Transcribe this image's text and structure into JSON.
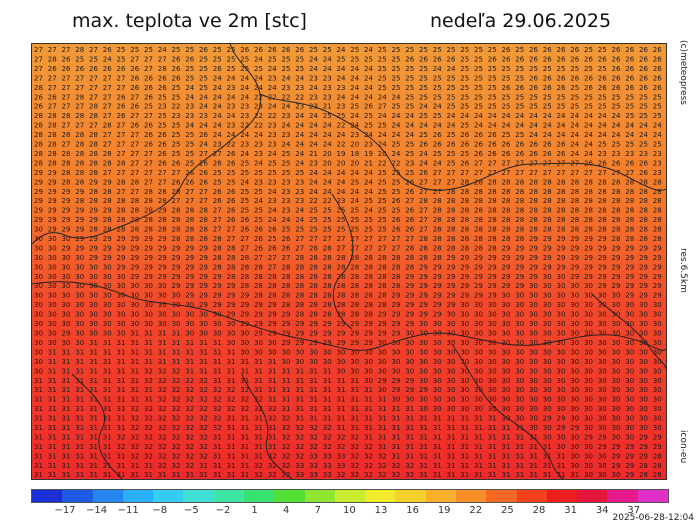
{
  "title_left": "max. teplota ve 2m [stc]",
  "title_right": "nedeľa 29.06.2025",
  "side_labels": {
    "credit": "(c)meteopress",
    "resolution": "res.6.5km",
    "model": "icon-eu"
  },
  "timestamp": "2025-06-28-12:04",
  "colorbar": {
    "ticks": [
      "−17",
      "−14",
      "−11",
      "−8",
      "−5",
      "−2",
      "1",
      "4",
      "7",
      "10",
      "13",
      "16",
      "19",
      "22",
      "25",
      "28",
      "31",
      "34",
      "37"
    ],
    "colors": [
      "#1b2fd6",
      "#1f5ae6",
      "#2585f0",
      "#2aaef5",
      "#34cdf0",
      "#3fe0d8",
      "#3ee6a6",
      "#38e070",
      "#52e035",
      "#8fe630",
      "#c8ec2e",
      "#f0ec2c",
      "#f6d02a",
      "#f6b02a",
      "#f59028",
      "#f46a24",
      "#f3401f",
      "#ef1d1d",
      "#e6163a",
      "#e61a8a",
      "#e030c8"
    ]
  },
  "map": {
    "rows": [
      "27 27 27 28 27 26 25 25 25 24 25 25 26 25 25 26 26 26 26 26 25 25 24 25 24 25 25 25 25 25 25 25 25 25 26 25 26 26 26 26 25 25 26 26 26 26",
      "27 28 26 25 25 24 25 27 27 27 26 26 25 25 25 25 24 25 25 25 24 24 25 25 25 25 25 26 26 26 26 25 25 26 26 26 26 26 26 26 26 26 26 26 26 26",
      "27 26 26 26 26 26 26 26 27 28 26 25 25 26 25 25 25 24 25 25 24 24 24 24 24 25 25 25 25 24 24 25 25 25 25 25 25 25 25 25 25 25 26 26 26 26",
      "27 27 27 27 27 27 27 26 26 26 26 25 25 24 24 24 24 23 24 24 23 23 24 24 24 25 25 25 25 25 25 25 25 25 25 25 26 26 26 26 26 26 26 26 26 26",
      "28 27 27 27 27 27 27 26 26 26 25 24 25 24 23 24 24 24 23 23 24 23 23 24 24 25 25 25 25 25 25 25 25 25 26 26 26 26 26 25 26 26 26 26 26 26",
      "26 26 27 28 27 27 26 27 26 25 25 24 24 24 24 24 22 22 22 22 23 23 24 24 24 24 24 25 25 25 25 25 25 25 25 25 25 25 25 25 25 25 25 25 25 25",
      "26 27 27 27 28 27 26 26 25 23 22 23 24 24 23 23 23 24 24 23 23 21 23 25 26 27 25 25 24 24 25 25 25 25 25 25 25 25 25 25 25 25 25 25 25 25",
      "28 28 28 28 28 27 26 27 27 25 23 23 23 24 24 23 22 22 23 24 24 25 25 24 25 24 24 24 25 25 24 24 24 24 24 24 24 24 24 24 24 24 24 25 25 25",
      "28 28 27 27 27 28 27 26 26 25 25 24 24 24 23 22 22 23 24 24 24 24 22 24 25 25 24 24 24 24 24 25 24 24 24 24 24 24 24 24 24 24 24 24 24 24",
      "28 28 28 28 28 27 27 27 26 26 25 25 26 24 24 24 24 23 23 24 24 24 24 23 24 24 24 24 25 26 25 26 26 26 25 25 24 24 24 24 24 24 24 24 24 24",
      "28 28 27 28 28 27 27 27 26 26 25 25 24 23 22 23 23 23 24 24 24 24 22 20 23 24 25 25 26 26 26 26 26 26 26 26 26 26 26 24 24 25 25 25 25 25",
      "28 28 28 28 28 28 27 27 27 26 25 25 27 27 26 24 23 24 25 24 21 20 19 18 19 20 24 25 24 25 25 25 26 26 26 26 26 26 26 24 24 23 23 23 23 23",
      "28 28 28 28 28 28 28 27 27 26 26 25 26 26 26 25 24 25 25 24 23 20 20 20 21 22 22 23 24 24 25 26 27 27 27 27 27 27 27 27 26 26 26 26 26 23",
      "29 29 28 28 28 27 27 27 27 27 27 26 26 25 25 25 25 25 25 25 24 24 24 24 24 25 25 25 26 27 27 27 27 27 27 27 27 27 27 27 27 27 27 27 26 23",
      "29 29 28 28 29 29 28 28 27 27 26 26 26 25 25 24 23 23 23 23 24 24 24 25 24 25 25 26 27 27 27 28 28 28 28 28 28 28 28 28 28 28 28 28 28 28",
      "29 29 29 29 28 28 27 27 28 28 28 27 27 26 26 25 25 24 23 23 24 24 24 24 24 25 25 26 27 27 28 28 28 28 28 28 28 28 28 28 28 28 28 28 28 28",
      "29 29 29 28 28 28 28 28 28 28 27 27 27 26 26 25 24 23 23 23 22 22 23 24 25 25 26 27 28 28 28 28 28 28 28 28 28 28 28 28 28 28 28 28 28 28",
      "29 29 29 29 29 29 28 28 28 29 28 28 28 27 26 25 25 24 23 24 25 25 25 25 24 25 25 26 27 28 28 28 28 28 28 28 28 28 28 28 28 28 28 28 28 28",
      "29 29 29 29 29 28 28 28 28 28 28 28 28 27 26 26 25 24 24 24 25 25 25 25 25 25 26 26 27 28 28 28 28 28 28 28 28 28 28 28 28 28 28 28 28 28",
      "30 29 29 29 28 28 28 28 28 28 28 28 28 27 27 26 26 26 25 25 25 25 25 25 25 25 26 26 27 28 28 28 28 28 28 28 28 28 28 28 28 28 28 28 28 28",
      "30 30 30 29 29 29 29 29 29 29 28 28 28 28 27 27 26 25 26 27 27 27 27 27 27 27 27 27 28 28 28 28 28 28 28 28 29 29 29 29 29 29 28 28 28 28",
      "30 30 29 29 29 29 29 29 29 29 29 29 29 28 28 27 26 26 26 27 28 28 27 27 27 27 27 28 28 28 28 28 28 28 29 29 29 29 29 29 29 29 29 29 29 29",
      "30 30 30 30 29 29 29 29 29 29 29 29 29 28 28 28 27 27 27 28 28 28 28 28 28 28 28 28 28 28 29 29 29 29 29 29 29 29 29 29 29 29 29 29 29 29",
      "30 30 30 30 30 30 29 29 29 29 29 29 29 28 28 28 28 27 28 28 28 28 28 28 28 28 28 28 29 29 29 29 29 29 29 29 29 29 29 29 29 29 29 29 29 29",
      "30 30 30 30 30 30 30 29 29 29 29 29 29 29 28 28 28 28 28 28 28 28 28 28 28 28 28 29 29 29 29 29 29 29 29 29 29 30 30 29 29 29 29 29 29 29",
      "30 30 30 30 30 30 30 30 30 30 29 29 29 29 29 28 28 28 28 28 28 28 28 28 28 28 28 29 29 29 29 29 29 29 29 29 30 30 30 30 30 29 29 29 29 29",
      "30 30 30 30 30 30 30 30 30 30 30 29 29 29 29 29 28 28 28 28 28 28 28 28 28 28 29 29 29 29 29 29 29 29 30 30 30 30 30 30 30 30 30 29 29 29",
      "30 30 30 30 30 30 30 30 30 30 30 30 29 29 29 29 29 29 28 28 28 28 28 28 28 28 29 29 29 29 29 30 30 30 30 30 30 30 30 30 30 30 30 30 30 30",
      "30 30 30 30 30 30 30 30 30 30 30 30 30 30 29 29 29 29 29 28 28 28 28 28 28 29 29 29 29 29 30 30 30 30 30 30 30 30 30 30 30 30 30 30 30 30",
      "30 30 30 30 30 30 30 30 30 30 30 30 30 30 30 29 29 29 29 29 29 29 29 29 29 29 29 29 30 30 30 30 30 30 30 30 30 30 30 30 30 30 30 30 30 30",
      "30 30 29 30 30 30 30 31 31 31 31 30 30 30 30 30 29 29 29 29 29 29 29 29 29 29 29 30 30 30 30 30 30 30 30 30 30 30 30 30 30 30 30 30 30 30",
      "30 30 30 30 31 31 31 31 31 31 31 31 31 31 30 30 30 30 29 29 29 29 29 29 29 30 30 30 30 30 30 30 30 30 30 30 30 30 30 30 30 30 30 30 30 30",
      "30 31 31 31 31 31 31 31 31 31 31 31 31 31 31 30 30 30 30 30 30 30 30 30 30 30 30 30 30 30 30 30 30 30 30 30 30 30 30 30 30 30 30 30 30 30",
      "30 31 31 31 31 31 31 31 31 31 31 31 31 31 31 31 31 31 30 30 30 30 30 30 30 30 30 30 30 30 30 30 30 30 30 30 30 30 30 30 30 30 30 30 30 30",
      "30 31 31 31 31 31 31 31 32 32 32 31 31 31 31 31 31 31 31 31 31 31 30 30 30 30 30 30 30 30 30 30 30 30 30 30 30 30 30 30 30 30 30 30 30 30",
      "31 31 31 31 31 31 31 31 32 32 32 32 32 31 31 31 31 31 31 31 31 31 31 31 30 29 29 29 30 30 30 30 30 30 30 30 30 30 30 30 30 30 30 30 30 30",
      "31 31 31 31 31 31 31 31 31 32 32 32 32 32 32 32 31 31 31 31 31 31 31 31 31 30 29 29 29 30 30 30 30 30 30 30 30 30 30 30 30 30 30 30 30 30",
      "31 31 31 31 31 31 31 31 31 32 32 32 32 32 32 32 32 31 31 31 31 31 31 31 31 31 30 30 30 30 30 30 30 30 30 30 30 30 30 30 30 30 30 30 30 30",
      "31 31 31 31 31 31 31 32 32 32 32 32 32 32 32 32 32 32 31 31 31 31 31 31 31 31 31 31 30 30 30 30 30 30 30 30 30 30 30 30 30 30 30 30 30 30",
      "31 31 31 31 31 31 31 32 32 32 32 32 32 32 31 31 31 32 32 31 31 31 31 31 31 31 31 31 31 31 31 31 31 31 30 30 30 29 29 30 30 30 30 30 30 30",
      "31 31 31 31 31 31 31 32 32 32 32 32 32 32 31 31 31 31 32 32 32 32 31 31 31 31 31 31 31 31 31 31 31 31 31 31 30 30 29 29 30 30 30 30 30 30",
      "31 31 31 31 31 31 32 32 32 32 32 32 32 31 31 31 31 31 32 32 32 32 32 32 31 31 31 31 31 31 31 31 31 31 31 31 31 30 30 30 29 29 30 30 29 29",
      "31 31 31 31 31 31 32 32 32 32 32 32 32 31 31 31 31 31 32 32 32 32 32 32 32 31 31 31 31 31 31 31 31 31 31 31 31 31 30 30 30 29 29 29 29 29",
      "31 31 31 31 31 31 31 32 32 32 32 32 32 31 31 31 31 32 32 32 33 33 33 32 32 32 31 31 31 31 31 31 31 31 31 31 31 31 31 30 30 30 29 29 29 28",
      "31 31 31 31 31 31 31 31 31 32 32 32 31 31 31 31 32 32 32 33 33 33 33 32 32 32 32 32 31 31 31 31 31 31 31 31 31 31 31 30 30 30 29 29 28 28",
      "31 31 31 31 31 31 31 31 31 31 31 31 31 31 31 31 32 32 32 33 33 33 32 32 32 32 32 32 31 31 31 31 31 31 31 31 31 31 31 31 30 30 30 29 28 28"
    ]
  }
}
